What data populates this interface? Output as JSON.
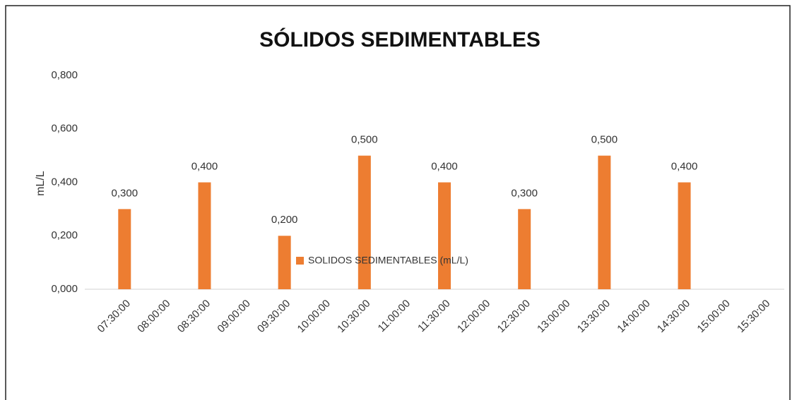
{
  "chart_data": {
    "type": "bar",
    "title": "SÓLIDOS SEDIMENTABLES",
    "y_label": "mL/L",
    "categories": [
      "07:30:00",
      "08:00:00",
      "08:30:00",
      "09:00:00",
      "09:30:00",
      "10:00:00",
      "10:30:00",
      "11:00:00",
      "11:30:00",
      "12:00:00",
      "12:30:00",
      "13:00:00",
      "13:30:00",
      "14:00:00",
      "14:30:00",
      "15:00:00",
      "15:30:00"
    ],
    "series": [
      {
        "name": "SOLIDOS SEDIMENTABLES (mL/L)",
        "color": "#ed7d31",
        "values": [
          0.3,
          null,
          0.4,
          null,
          0.2,
          null,
          0.5,
          null,
          0.4,
          null,
          0.3,
          null,
          0.5,
          null,
          0.4,
          null,
          null
        ],
        "value_labels": [
          "0,300",
          null,
          "0,400",
          null,
          "0,200",
          null,
          "0,500",
          null,
          "0,400",
          null,
          "0,300",
          null,
          "0,500",
          null,
          "0,400",
          null,
          null
        ]
      }
    ],
    "ylim": [
      0,
      0.8
    ],
    "yticks": [
      {
        "value": 0,
        "label": "0,000"
      },
      {
        "value": 0.2,
        "label": "0,200"
      },
      {
        "value": 0.4,
        "label": "0,400"
      },
      {
        "value": 0.6,
        "label": "0,600"
      },
      {
        "value": 0.8,
        "label": "0,800"
      }
    ],
    "grid": false,
    "legend": "bottom"
  }
}
